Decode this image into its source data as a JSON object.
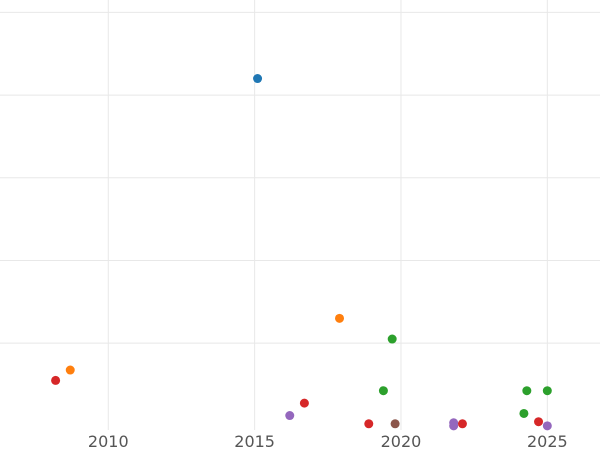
{
  "chart_data": {
    "type": "scatter",
    "title": "",
    "xlabel": "",
    "ylabel": "",
    "xlim": [
      2006.3,
      2026.8
    ],
    "ylim": [
      -0.2,
      20.6
    ],
    "grid": true,
    "x_ticks": [
      2010,
      2015,
      2020,
      2025
    ],
    "y_gridlines": [
      4,
      8,
      12,
      16,
      20
    ],
    "colors": {
      "blue": "#1f77b4",
      "orange": "#ff7f0e",
      "green": "#2ca02c",
      "red": "#d62728",
      "purple": "#9467bd",
      "brown": "#8c564b",
      "grid": "#e8e8e8",
      "tick_text": "#555555"
    },
    "points": [
      {
        "x": 2015.1,
        "y": 16.8,
        "color": "#1f77b4"
      },
      {
        "x": 2008.2,
        "y": 2.2,
        "color": "#d62728"
      },
      {
        "x": 2008.7,
        "y": 2.7,
        "color": "#ff7f0e"
      },
      {
        "x": 2016.2,
        "y": 0.5,
        "color": "#9467bd"
      },
      {
        "x": 2016.7,
        "y": 1.1,
        "color": "#d62728"
      },
      {
        "x": 2017.9,
        "y": 5.2,
        "color": "#ff7f0e"
      },
      {
        "x": 2018.9,
        "y": 0.1,
        "color": "#d62728"
      },
      {
        "x": 2019.4,
        "y": 1.7,
        "color": "#2ca02c"
      },
      {
        "x": 2019.7,
        "y": 4.2,
        "color": "#2ca02c"
      },
      {
        "x": 2019.8,
        "y": 0.1,
        "color": "#8c564b"
      },
      {
        "x": 2021.8,
        "y": 0.15,
        "color": "#9467bd"
      },
      {
        "x": 2021.8,
        "y": 0.0,
        "color": "#9467bd"
      },
      {
        "x": 2022.1,
        "y": 0.1,
        "color": "#d62728"
      },
      {
        "x": 2024.2,
        "y": 0.6,
        "color": "#2ca02c"
      },
      {
        "x": 2024.3,
        "y": 1.7,
        "color": "#2ca02c"
      },
      {
        "x": 2024.7,
        "y": 0.2,
        "color": "#d62728"
      },
      {
        "x": 2025.0,
        "y": 1.7,
        "color": "#2ca02c"
      },
      {
        "x": 2025.0,
        "y": 0.0,
        "color": "#9467bd"
      }
    ]
  }
}
